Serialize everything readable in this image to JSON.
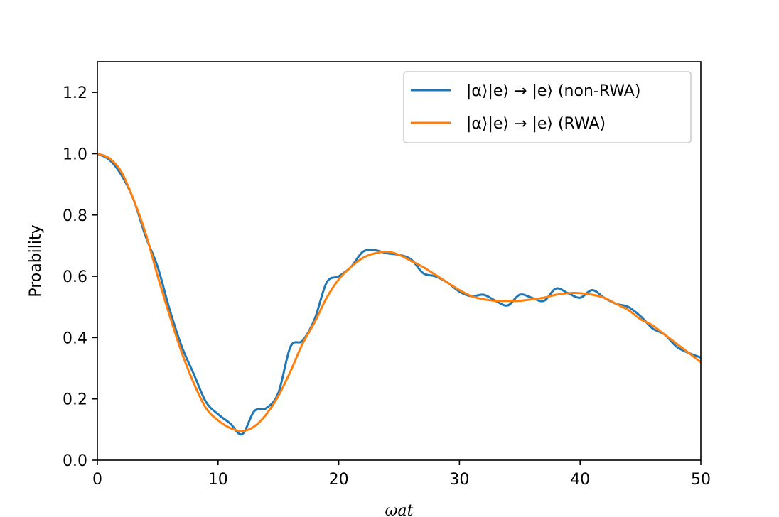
{
  "chart_data": {
    "type": "line",
    "title": "",
    "xlabel": "ωat",
    "ylabel": "Proability",
    "xlim": [
      0,
      50
    ],
    "ylim": [
      0,
      1.3
    ],
    "xticks": [
      0,
      10,
      20,
      30,
      40,
      50
    ],
    "xtick_labels": [
      "0",
      "10",
      "20",
      "30",
      "40",
      "50"
    ],
    "yticks": [
      0.0,
      0.2,
      0.4,
      0.6,
      0.8,
      1.0,
      1.2
    ],
    "ytick_labels": [
      "0.0",
      "0.2",
      "0.4",
      "0.6",
      "0.8",
      "1.0",
      "1.2"
    ],
    "grid": false,
    "legend_position": "top-right",
    "series": [
      {
        "name": "|α⟩|e⟩ → |e⟩ (non-RWA)",
        "color": "#1f77b4",
        "x": [
          0,
          1,
          2,
          3,
          4,
          5,
          6,
          7,
          8,
          9,
          10,
          11,
          12,
          13,
          14,
          15,
          16,
          17,
          18,
          19,
          20,
          21,
          22,
          23,
          24,
          25,
          26,
          27,
          28,
          29,
          30,
          31,
          32,
          33,
          34,
          35,
          36,
          37,
          38,
          39,
          40,
          41,
          42,
          43,
          44,
          45,
          46,
          47,
          48,
          49,
          50
        ],
        "y": [
          1.0,
          0.98,
          0.93,
          0.85,
          0.73,
          0.63,
          0.49,
          0.37,
          0.28,
          0.19,
          0.15,
          0.12,
          0.085,
          0.16,
          0.17,
          0.22,
          0.37,
          0.39,
          0.46,
          0.58,
          0.6,
          0.63,
          0.68,
          0.685,
          0.675,
          0.67,
          0.655,
          0.61,
          0.6,
          0.58,
          0.55,
          0.535,
          0.54,
          0.52,
          0.505,
          0.54,
          0.53,
          0.52,
          0.56,
          0.545,
          0.53,
          0.555,
          0.53,
          0.51,
          0.5,
          0.47,
          0.43,
          0.41,
          0.37,
          0.35,
          0.335
        ]
      },
      {
        "name": "|α⟩|e⟩ → |e⟩ (RWA)",
        "color": "#ff7f0e",
        "x": [
          0,
          1,
          2,
          3,
          4,
          5,
          6,
          7,
          8,
          9,
          10,
          11,
          12,
          13,
          14,
          15,
          16,
          17,
          18,
          19,
          20,
          21,
          22,
          23,
          24,
          25,
          26,
          27,
          28,
          29,
          30,
          31,
          32,
          33,
          34,
          35,
          36,
          37,
          38,
          39,
          40,
          41,
          42,
          43,
          44,
          45,
          46,
          47,
          48,
          49,
          50
        ],
        "y": [
          1.0,
          0.985,
          0.94,
          0.85,
          0.74,
          0.6,
          0.47,
          0.35,
          0.25,
          0.17,
          0.13,
          0.105,
          0.095,
          0.11,
          0.15,
          0.21,
          0.29,
          0.38,
          0.45,
          0.53,
          0.59,
          0.63,
          0.66,
          0.675,
          0.68,
          0.67,
          0.65,
          0.63,
          0.605,
          0.58,
          0.555,
          0.535,
          0.525,
          0.52,
          0.52,
          0.52,
          0.525,
          0.53,
          0.54,
          0.545,
          0.545,
          0.54,
          0.53,
          0.51,
          0.49,
          0.46,
          0.44,
          0.41,
          0.38,
          0.35,
          0.32
        ]
      }
    ]
  }
}
